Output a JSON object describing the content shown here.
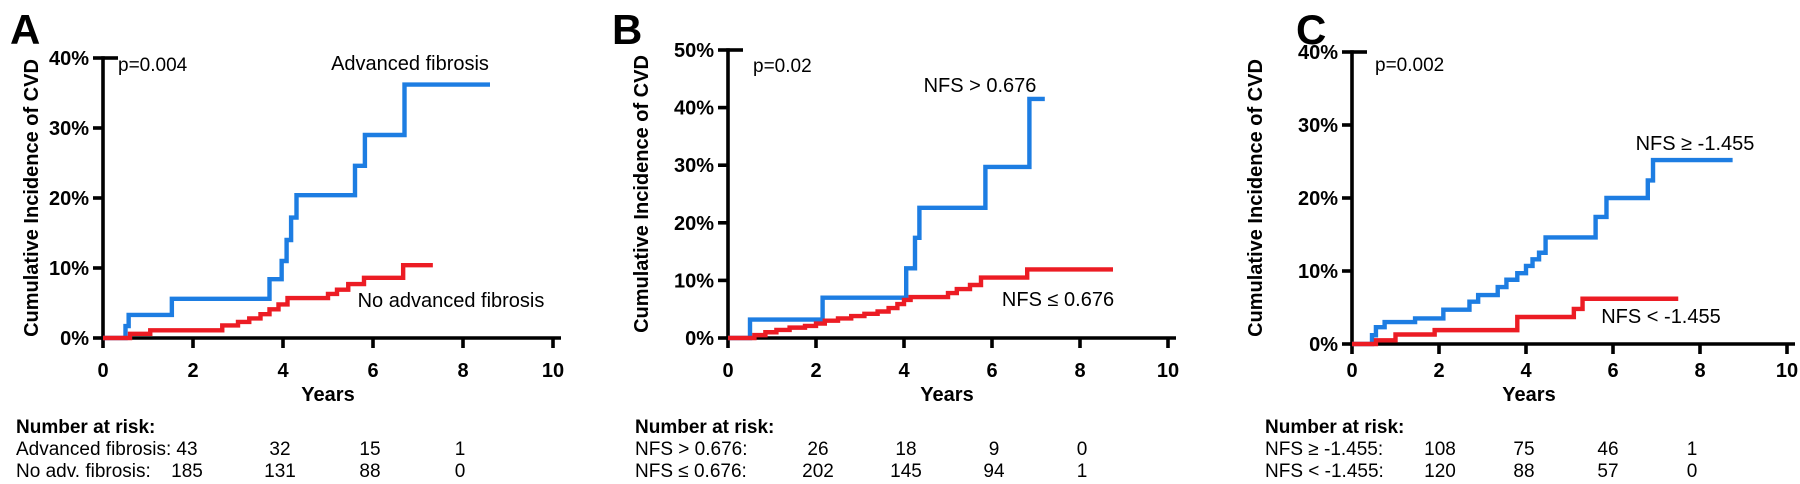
{
  "colors": {
    "axis": "#000000",
    "background": "#ffffff",
    "blue": "#1d7de2",
    "red": "#ec1c24"
  },
  "chart_data": [
    {
      "type": "line",
      "style": "kaplan-meier-step",
      "panel_letter": "A",
      "p_value": "p=0.004",
      "ylabel": "Cumulative Incidence of CVD",
      "xlabel": "Years",
      "xlim": [
        0,
        10
      ],
      "ylim": [
        0,
        40
      ],
      "x_ticks": [
        0,
        2,
        4,
        6,
        8,
        10
      ],
      "y_ticks": [
        0,
        10,
        20,
        30,
        40
      ],
      "y_tick_suffix": "%",
      "series": [
        {
          "name": "Advanced fibrosis",
          "color": "#1d7de2",
          "points": [
            [
              0,
              0
            ],
            [
              0.5,
              1.7
            ],
            [
              0.57,
              3.3
            ],
            [
              1.53,
              5.6
            ],
            [
              3.7,
              8.4
            ],
            [
              3.97,
              11.0
            ],
            [
              4.08,
              14.0
            ],
            [
              4.18,
              17.2
            ],
            [
              4.3,
              20.4
            ],
            [
              5.6,
              24.6
            ],
            [
              5.82,
              29.0
            ],
            [
              6.7,
              36.2
            ],
            [
              8.6,
              36.2
            ]
          ]
        },
        {
          "name": "No advanced fibrosis",
          "color": "#ec1c24",
          "points": [
            [
              0,
              0
            ],
            [
              0.6,
              0.6
            ],
            [
              1.05,
              1.1
            ],
            [
              2.65,
              1.8
            ],
            [
              3.0,
              2.3
            ],
            [
              3.25,
              2.8
            ],
            [
              3.5,
              3.4
            ],
            [
              3.7,
              4.1
            ],
            [
              3.9,
              4.8
            ],
            [
              4.1,
              5.7
            ],
            [
              5.0,
              6.3
            ],
            [
              5.2,
              6.9
            ],
            [
              5.45,
              7.7
            ],
            [
              5.8,
              8.6
            ],
            [
              6.67,
              10.4
            ],
            [
              7.33,
              10.4
            ]
          ]
        }
      ],
      "number_at_risk": {
        "header": "Number at risk:",
        "at_years": [
          2,
          4,
          6,
          8
        ],
        "rows": [
          {
            "label": "Advanced fibrosis:",
            "values": [
              "43",
              "32",
              "15",
              "1"
            ]
          },
          {
            "label": "No adv. fibrosis:",
            "values": [
              "185",
              "131",
              "88",
              "0"
            ]
          }
        ]
      }
    },
    {
      "type": "line",
      "style": "kaplan-meier-step",
      "panel_letter": "B",
      "p_value": "p=0.02",
      "ylabel": "Cumulative Incidence of CVD",
      "xlabel": "Years",
      "xlim": [
        0,
        10
      ],
      "ylim": [
        0,
        50
      ],
      "x_ticks": [
        0,
        2,
        4,
        6,
        8,
        10
      ],
      "y_ticks": [
        0,
        10,
        20,
        30,
        40,
        50
      ],
      "y_tick_suffix": "%",
      "series": [
        {
          "name": "NFS > 0.676",
          "color": "#1d7de2",
          "points": [
            [
              0,
              0
            ],
            [
              0.5,
              3.2
            ],
            [
              2.15,
              7.0
            ],
            [
              4.05,
              12.1
            ],
            [
              4.25,
              17.4
            ],
            [
              4.35,
              22.6
            ],
            [
              5.85,
              29.7
            ],
            [
              6.85,
              41.5
            ],
            [
              7.2,
              41.5
            ]
          ]
        },
        {
          "name": "NFS ≤ 0.676",
          "color": "#ec1c24",
          "points": [
            [
              0,
              0
            ],
            [
              0.6,
              0.5
            ],
            [
              0.85,
              1.0
            ],
            [
              1.1,
              1.4
            ],
            [
              1.4,
              1.8
            ],
            [
              1.75,
              2.1
            ],
            [
              2.0,
              2.5
            ],
            [
              2.2,
              3.0
            ],
            [
              2.5,
              3.4
            ],
            [
              2.8,
              3.8
            ],
            [
              3.1,
              4.2
            ],
            [
              3.4,
              4.6
            ],
            [
              3.65,
              5.2
            ],
            [
              3.85,
              5.9
            ],
            [
              4.0,
              6.6
            ],
            [
              4.15,
              7.1
            ],
            [
              5.0,
              7.8
            ],
            [
              5.2,
              8.5
            ],
            [
              5.5,
              9.2
            ],
            [
              5.75,
              10.5
            ],
            [
              6.8,
              11.9
            ],
            [
              8.75,
              11.9
            ]
          ]
        }
      ],
      "number_at_risk": {
        "header": "Number at risk:",
        "at_years": [
          2,
          4,
          6,
          8
        ],
        "rows": [
          {
            "label": "NFS > 0.676:",
            "values": [
              "26",
              "18",
              "9",
              "0"
            ]
          },
          {
            "label": "NFS ≤ 0.676:",
            "values": [
              "202",
              "145",
              "94",
              "1"
            ]
          }
        ]
      }
    },
    {
      "type": "line",
      "style": "kaplan-meier-step",
      "panel_letter": "C",
      "p_value": "p=0.002",
      "ylabel": "Cumulative Incidence of CVD",
      "xlabel": "Years",
      "xlim": [
        0,
        10
      ],
      "ylim": [
        0,
        40
      ],
      "x_ticks": [
        0,
        2,
        4,
        6,
        8,
        10
      ],
      "y_ticks": [
        0,
        10,
        20,
        30,
        40
      ],
      "y_tick_suffix": "%",
      "series": [
        {
          "name": "NFS ≥ -1.455",
          "color": "#1d7de2",
          "points": [
            [
              0,
              0
            ],
            [
              0.46,
              1.2
            ],
            [
              0.55,
              2.3
            ],
            [
              0.75,
              3.0
            ],
            [
              1.45,
              3.5
            ],
            [
              2.1,
              4.7
            ],
            [
              2.7,
              5.8
            ],
            [
              2.9,
              6.7
            ],
            [
              3.35,
              7.8
            ],
            [
              3.55,
              8.8
            ],
            [
              3.8,
              9.7
            ],
            [
              4.0,
              10.7
            ],
            [
              4.15,
              11.6
            ],
            [
              4.3,
              12.5
            ],
            [
              4.45,
              14.6
            ],
            [
              5.6,
              17.4
            ],
            [
              5.85,
              20.0
            ],
            [
              6.8,
              22.4
            ],
            [
              6.92,
              25.2
            ],
            [
              8.75,
              25.2
            ]
          ]
        },
        {
          "name": "NFS < -1.455",
          "color": "#ec1c24",
          "points": [
            [
              0,
              0
            ],
            [
              0.55,
              0.5
            ],
            [
              1.0,
              1.3
            ],
            [
              1.9,
              1.9
            ],
            [
              3.8,
              3.7
            ],
            [
              5.1,
              4.8
            ],
            [
              5.3,
              6.2
            ],
            [
              7.5,
              6.2
            ]
          ]
        }
      ],
      "number_at_risk": {
        "header": "Number at risk:",
        "at_years": [
          2,
          4,
          6,
          8
        ],
        "rows": [
          {
            "label": "NFS ≥ -1.455:",
            "values": [
              "108",
              "75",
              "46",
              "1"
            ]
          },
          {
            "label": "NFS < -1.455:",
            "values": [
              "120",
              "88",
              "57",
              "0"
            ]
          }
        ]
      }
    }
  ]
}
